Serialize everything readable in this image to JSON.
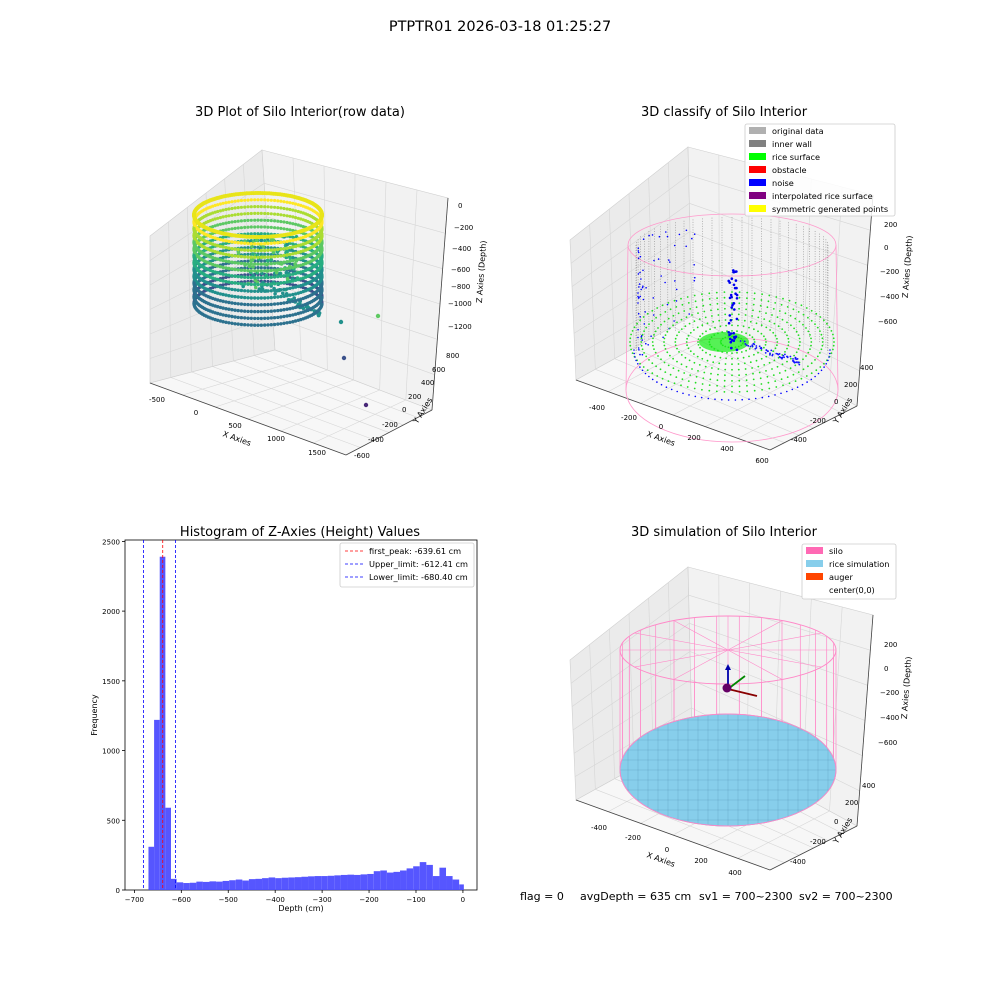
{
  "figure": {
    "suptitle": "PTPTR01 2026-03-18 01:25:27",
    "footer": {
      "flag": "flag = 0",
      "avg": "avgDepth = 635 cm",
      "sv1": "sv1 = 700~2300",
      "sv2": "sv2 = 700~2300"
    }
  },
  "chart_data": [
    {
      "type": "scatter3d",
      "title": "3D Plot of Silo Interior(row data)",
      "xlabel": "X Axies",
      "ylabel": "Y Axies",
      "zlabel": "Z Axies (Depth)",
      "x_ticks": [
        "-500",
        "0",
        "500",
        "1000",
        "1500"
      ],
      "y_ticks": [
        "-600",
        "-400",
        "-200",
        "0",
        "200",
        "400",
        "600",
        "800"
      ],
      "z_ticks": [
        "0",
        "−200",
        "−400",
        "−600",
        "−800",
        "−1000",
        "−1200"
      ],
      "xlim": [
        -600,
        1800
      ],
      "ylim": [
        -650,
        850
      ],
      "zlim": [
        -1350,
        50
      ],
      "colormap": "viridis",
      "outliers": [
        {
          "x": 1200,
          "y": -600,
          "z": -1200,
          "color": "#482878"
        },
        {
          "x": 1150,
          "y": -500,
          "z": -850,
          "color": "#3b528b"
        },
        {
          "x": 1000,
          "y": -400,
          "z": -600,
          "color": "#21918c"
        },
        {
          "x": 1200,
          "y": -300,
          "z": -450,
          "color": "#5ec962"
        }
      ]
    },
    {
      "type": "scatter3d",
      "title": "3D classify of Silo Interior",
      "xlabel": "X Axies",
      "ylabel": "Y Axies",
      "zlabel": "Z Axies (Depth)",
      "x_ticks": [
        "-400",
        "-200",
        "0",
        "200",
        "400",
        "600"
      ],
      "y_ticks": [
        "-400",
        "-200",
        "0",
        "200",
        "400"
      ],
      "z_ticks": [
        "200",
        "0",
        "−200",
        "−400",
        "−600"
      ],
      "legend_position": "top-right",
      "legend": [
        {
          "label": "original data",
          "color": "#b0b0b0"
        },
        {
          "label": "inner wall",
          "color": "#808080"
        },
        {
          "label": "rice surface",
          "color": "#00ff00"
        },
        {
          "label": "obstacle",
          "color": "#ff0000"
        },
        {
          "label": "noise",
          "color": "#0000ff"
        },
        {
          "label": "interpolated rice surface",
          "color": "#800080"
        },
        {
          "label": "symmetric generated points",
          "color": "#ffff00"
        }
      ]
    },
    {
      "type": "bar",
      "title": "Histogram of Z-Axies (Height) Values",
      "xlabel": "Depth (cm)",
      "ylabel": "Frequency",
      "xlim": [
        -720,
        30
      ],
      "ylim": [
        0,
        2510
      ],
      "x_ticks": [
        "−700",
        "−600",
        "−500",
        "−400",
        "−300",
        "−200",
        "−100",
        "0"
      ],
      "y_ticks": [
        "0",
        "500",
        "1000",
        "1500",
        "2000",
        "2500"
      ],
      "bar_color": "#4d4dff",
      "bins": [
        {
          "x0": -670,
          "x1": -658,
          "y": 310
        },
        {
          "x0": -658,
          "x1": -646,
          "y": 1220
        },
        {
          "x0": -646,
          "x1": -634,
          "y": 2390
        },
        {
          "x0": -634,
          "x1": -622,
          "y": 590
        },
        {
          "x0": -622,
          "x1": -610,
          "y": 80
        },
        {
          "x0": -610,
          "x1": -596,
          "y": 55
        },
        {
          "x0": -596,
          "x1": -582,
          "y": 50
        },
        {
          "x0": -582,
          "x1": -568,
          "y": 52
        },
        {
          "x0": -568,
          "x1": -554,
          "y": 60
        },
        {
          "x0": -554,
          "x1": -540,
          "y": 58
        },
        {
          "x0": -540,
          "x1": -526,
          "y": 62
        },
        {
          "x0": -526,
          "x1": -512,
          "y": 60
        },
        {
          "x0": -512,
          "x1": -498,
          "y": 65
        },
        {
          "x0": -498,
          "x1": -484,
          "y": 70
        },
        {
          "x0": -484,
          "x1": -470,
          "y": 75
        },
        {
          "x0": -470,
          "x1": -456,
          "y": 68
        },
        {
          "x0": -456,
          "x1": -442,
          "y": 78
        },
        {
          "x0": -442,
          "x1": -428,
          "y": 80
        },
        {
          "x0": -428,
          "x1": -414,
          "y": 85
        },
        {
          "x0": -414,
          "x1": -400,
          "y": 90
        },
        {
          "x0": -400,
          "x1": -386,
          "y": 85
        },
        {
          "x0": -386,
          "x1": -372,
          "y": 88
        },
        {
          "x0": -372,
          "x1": -358,
          "y": 90
        },
        {
          "x0": -358,
          "x1": -344,
          "y": 92
        },
        {
          "x0": -344,
          "x1": -330,
          "y": 95
        },
        {
          "x0": -330,
          "x1": -316,
          "y": 98
        },
        {
          "x0": -316,
          "x1": -302,
          "y": 100
        },
        {
          "x0": -302,
          "x1": -288,
          "y": 100
        },
        {
          "x0": -288,
          "x1": -274,
          "y": 102
        },
        {
          "x0": -274,
          "x1": -260,
          "y": 105
        },
        {
          "x0": -260,
          "x1": -246,
          "y": 108
        },
        {
          "x0": -246,
          "x1": -232,
          "y": 110
        },
        {
          "x0": -232,
          "x1": -218,
          "y": 108
        },
        {
          "x0": -218,
          "x1": -204,
          "y": 112
        },
        {
          "x0": -204,
          "x1": -190,
          "y": 115
        },
        {
          "x0": -190,
          "x1": -176,
          "y": 135
        },
        {
          "x0": -176,
          "x1": -162,
          "y": 140
        },
        {
          "x0": -162,
          "x1": -148,
          "y": 125
        },
        {
          "x0": -148,
          "x1": -134,
          "y": 130
        },
        {
          "x0": -134,
          "x1": -120,
          "y": 140
        },
        {
          "x0": -120,
          "x1": -106,
          "y": 155
        },
        {
          "x0": -106,
          "x1": -92,
          "y": 170
        },
        {
          "x0": -92,
          "x1": -78,
          "y": 200
        },
        {
          "x0": -78,
          "x1": -64,
          "y": 180
        },
        {
          "x0": -64,
          "x1": -50,
          "y": 100
        },
        {
          "x0": -50,
          "x1": -36,
          "y": 160
        },
        {
          "x0": -36,
          "x1": -22,
          "y": 100
        },
        {
          "x0": -22,
          "x1": -8,
          "y": 75
        },
        {
          "x0": -8,
          "x1": 2,
          "y": 40
        }
      ],
      "vlines": [
        {
          "x": -639.61,
          "color": "#ff0000",
          "label": "first_peak: -639.61 cm"
        },
        {
          "x": -612.41,
          "color": "#0000ff",
          "label": "Upper_limit: -612.41 cm"
        },
        {
          "x": -680.4,
          "color": "#0000ff",
          "label": "Lower_limit: -680.40 cm"
        }
      ],
      "legend_position": "top-right"
    },
    {
      "type": "surface3d",
      "title": "3D simulation of Silo Interior",
      "xlabel": "X Axies",
      "ylabel": "Y Axies",
      "zlabel": "Z Axies (Depth)",
      "x_ticks": [
        "-400",
        "-200",
        "0",
        "200",
        "400"
      ],
      "y_ticks": [
        "-400",
        "-200",
        "0",
        "200",
        "400"
      ],
      "z_ticks": [
        "200",
        "0",
        "−200",
        "−400",
        "−600"
      ],
      "legend_position": "top-right",
      "legend": [
        {
          "label": "silo",
          "color": "#ff69b4"
        },
        {
          "label": "rice simulation",
          "color": "#87ceeb"
        },
        {
          "label": "auger",
          "color": "#ff4500"
        },
        {
          "label": "center(0,0)",
          "color": "#ffffff"
        }
      ]
    }
  ]
}
